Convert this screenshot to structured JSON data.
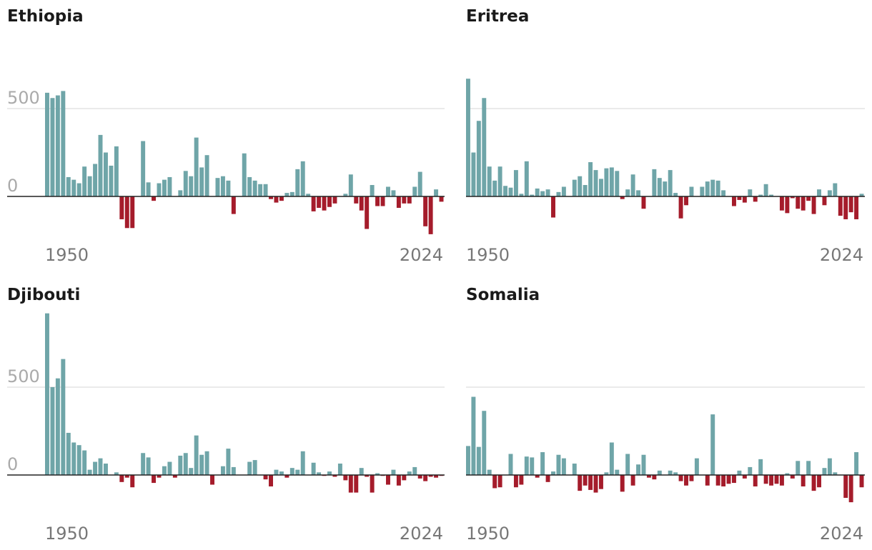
{
  "chart_data": [
    {
      "type": "bar",
      "title": "Ethiopia",
      "positive_color": "#6fa5a8",
      "negative_color": "#a51c2b",
      "categories": [
        "1950",
        null,
        null,
        null,
        null,
        null,
        null,
        null,
        null,
        null,
        null,
        null,
        null,
        null,
        null,
        null,
        null,
        null,
        null,
        null,
        null,
        null,
        null,
        null,
        null,
        null,
        null,
        null,
        null,
        null,
        null,
        null,
        null,
        null,
        null,
        null,
        null,
        null,
        null,
        null,
        null,
        null,
        null,
        null,
        null,
        null,
        null,
        null,
        null,
        null,
        null,
        null,
        null,
        null,
        null,
        null,
        null,
        null,
        null,
        null,
        null,
        null,
        null,
        null,
        null,
        null,
        null,
        null,
        null,
        null,
        null,
        null,
        null,
        null,
        "2024"
      ],
      "values": [
        590,
        560,
        575,
        600,
        110,
        95,
        75,
        170,
        115,
        185,
        350,
        250,
        175,
        285,
        -130,
        -180,
        -180,
        0,
        315,
        80,
        -25,
        75,
        95,
        110,
        0,
        35,
        145,
        115,
        335,
        165,
        235,
        0,
        105,
        115,
        90,
        -100,
        0,
        245,
        110,
        90,
        70,
        70,
        -15,
        -35,
        -25,
        20,
        25,
        155,
        200,
        15,
        -85,
        -65,
        -80,
        -60,
        -40,
        0,
        15,
        125,
        -40,
        -80,
        -185,
        65,
        -55,
        -55,
        55,
        35,
        -65,
        -40,
        -40,
        55,
        140,
        -170,
        -215,
        40,
        -30
      ],
      "ylim": [
        -250,
        700
      ],
      "yticks": [
        0,
        500
      ],
      "grid": true,
      "ytick_labels": true
    },
    {
      "type": "bar",
      "title": "Eritrea",
      "positive_color": "#6fa5a8",
      "negative_color": "#a51c2b",
      "categories": [
        "1950",
        null,
        null,
        null,
        null,
        null,
        null,
        null,
        null,
        null,
        null,
        null,
        null,
        null,
        null,
        null,
        null,
        null,
        null,
        null,
        null,
        null,
        null,
        null,
        null,
        null,
        null,
        null,
        null,
        null,
        null,
        null,
        null,
        null,
        null,
        null,
        null,
        null,
        null,
        null,
        null,
        null,
        null,
        null,
        null,
        null,
        null,
        null,
        null,
        null,
        null,
        null,
        null,
        null,
        null,
        null,
        null,
        null,
        null,
        null,
        null,
        null,
        null,
        null,
        null,
        null,
        null,
        null,
        null,
        null,
        null,
        null,
        null,
        null,
        "2024"
      ],
      "values": [
        670,
        250,
        430,
        560,
        170,
        90,
        170,
        60,
        50,
        150,
        15,
        200,
        10,
        45,
        30,
        40,
        -120,
        25,
        55,
        0,
        95,
        115,
        65,
        195,
        150,
        100,
        160,
        165,
        145,
        -15,
        40,
        125,
        35,
        -70,
        0,
        155,
        105,
        85,
        150,
        20,
        -125,
        -50,
        55,
        0,
        55,
        85,
        95,
        90,
        35,
        0,
        -55,
        -20,
        -35,
        40,
        -30,
        10,
        70,
        10,
        0,
        -80,
        -95,
        -10,
        -70,
        -80,
        -25,
        -100,
        40,
        -50,
        35,
        75,
        -110,
        -130,
        -90,
        -130,
        15
      ],
      "ylim": [
        -250,
        700
      ],
      "yticks": [
        0,
        500
      ],
      "grid": true,
      "ytick_labels": false
    },
    {
      "type": "bar",
      "title": "Djibouti",
      "positive_color": "#6fa5a8",
      "negative_color": "#a51c2b",
      "categories": [
        "1950",
        null,
        null,
        null,
        null,
        null,
        null,
        null,
        null,
        null,
        null,
        null,
        null,
        null,
        null,
        null,
        null,
        null,
        null,
        null,
        null,
        null,
        null,
        null,
        null,
        null,
        null,
        null,
        null,
        null,
        null,
        null,
        null,
        null,
        null,
        null,
        null,
        null,
        null,
        null,
        null,
        null,
        null,
        null,
        null,
        null,
        null,
        null,
        null,
        null,
        null,
        null,
        null,
        null,
        null,
        null,
        null,
        null,
        null,
        null,
        null,
        null,
        null,
        null,
        null,
        null,
        null,
        null,
        null,
        null,
        null,
        null,
        null,
        null,
        "2024"
      ],
      "values": [
        920,
        500,
        550,
        660,
        240,
        185,
        170,
        140,
        30,
        75,
        95,
        65,
        0,
        15,
        -40,
        -15,
        -70,
        0,
        125,
        100,
        -45,
        -15,
        50,
        75,
        -15,
        110,
        125,
        40,
        225,
        115,
        135,
        -55,
        0,
        50,
        150,
        45,
        0,
        0,
        75,
        85,
        0,
        -25,
        -65,
        30,
        20,
        -15,
        40,
        30,
        135,
        0,
        70,
        15,
        -5,
        20,
        -10,
        65,
        -30,
        -100,
        -100,
        40,
        -10,
        -100,
        10,
        -5,
        -55,
        30,
        -60,
        -30,
        20,
        45,
        -20,
        -35,
        -10,
        -15,
        -5
      ],
      "ylim": [
        -250,
        950
      ],
      "yticks": [
        0,
        500
      ],
      "grid": true,
      "ytick_labels": true
    },
    {
      "type": "bar",
      "title": "Somalia",
      "positive_color": "#6fa5a8",
      "negative_color": "#a51c2b",
      "categories": [
        "1950",
        null,
        null,
        null,
        null,
        null,
        null,
        null,
        null,
        null,
        null,
        null,
        null,
        null,
        null,
        null,
        null,
        null,
        null,
        null,
        null,
        null,
        null,
        null,
        null,
        null,
        null,
        null,
        null,
        null,
        null,
        null,
        null,
        null,
        null,
        null,
        null,
        null,
        null,
        null,
        null,
        null,
        null,
        null,
        null,
        null,
        null,
        null,
        null,
        null,
        null,
        null,
        null,
        null,
        null,
        null,
        null,
        null,
        null,
        null,
        null,
        null,
        null,
        null,
        null,
        null,
        null,
        null,
        null,
        null,
        null,
        null,
        null,
        null,
        "2024"
      ],
      "values": [
        165,
        445,
        160,
        365,
        30,
        -75,
        -70,
        0,
        120,
        -70,
        -55,
        105,
        100,
        -15,
        130,
        -40,
        20,
        115,
        95,
        0,
        65,
        -90,
        -60,
        -85,
        -100,
        -80,
        15,
        185,
        30,
        -95,
        120,
        -60,
        60,
        115,
        -15,
        -25,
        25,
        0,
        25,
        15,
        -35,
        -60,
        -35,
        95,
        0,
        -60,
        345,
        -60,
        -65,
        -50,
        -45,
        25,
        -20,
        45,
        -65,
        90,
        -50,
        -60,
        -50,
        -60,
        10,
        -20,
        80,
        -65,
        80,
        -90,
        -70,
        40,
        95,
        15,
        0,
        -130,
        -155,
        130,
        -70
      ],
      "ylim": [
        -250,
        950
      ],
      "yticks": [
        0,
        500
      ],
      "grid": true,
      "ytick_labels": false
    }
  ]
}
